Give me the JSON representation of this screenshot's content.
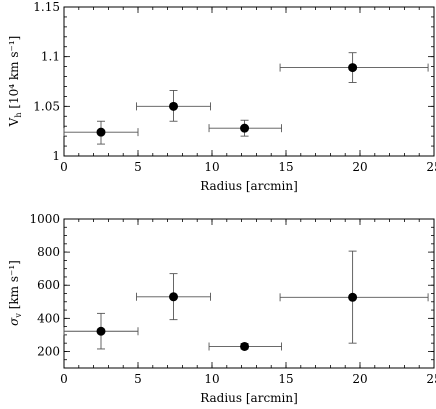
{
  "chart_data": [
    {
      "type": "scatter",
      "xlabel": "Radius [arcmin]",
      "ylabel_main": "V",
      "ylabel_sub": "h",
      "ylabel_unit": " [10⁴ km s⁻¹]",
      "xlim": [
        0,
        25
      ],
      "ylim": [
        1.0,
        1.15
      ],
      "xticks": [
        0,
        5,
        10,
        15,
        20,
        25
      ],
      "xtick_labels": [
        "0",
        "5",
        "10",
        "15",
        "20",
        "25"
      ],
      "yticks": [
        1.0,
        1.05,
        1.1,
        1.15
      ],
      "ytick_labels": [
        "1",
        "1.05",
        "1.1",
        "1.15"
      ],
      "minor_x_step": 1,
      "minor_y_step": 0.01,
      "grid": false,
      "points": [
        {
          "x": 2.5,
          "y": 1.024,
          "xlo": 0.0,
          "xhi": 5.0,
          "ylo": 1.012,
          "yhi": 1.035
        },
        {
          "x": 7.4,
          "y": 1.05,
          "xlo": 4.9,
          "xhi": 9.9,
          "ylo": 1.035,
          "yhi": 1.066
        },
        {
          "x": 12.2,
          "y": 1.028,
          "xlo": 9.8,
          "xhi": 14.7,
          "ylo": 1.02,
          "yhi": 1.036
        },
        {
          "x": 19.5,
          "y": 1.089,
          "xlo": 14.6,
          "xhi": 24.6,
          "ylo": 1.074,
          "yhi": 1.104
        }
      ]
    },
    {
      "type": "scatter",
      "xlabel": "Radius [arcmin]",
      "ylabel_main": "σ",
      "ylabel_sub": "v",
      "ylabel_unit": " [km s⁻¹]",
      "xlim": [
        0,
        25
      ],
      "ylim": [
        100,
        1000
      ],
      "xticks": [
        0,
        5,
        10,
        15,
        20,
        25
      ],
      "xtick_labels": [
        "0",
        "5",
        "10",
        "15",
        "20",
        "25"
      ],
      "yticks": [
        200,
        400,
        600,
        800,
        1000
      ],
      "ytick_labels": [
        "200",
        "400",
        "600",
        "800",
        "1000"
      ],
      "minor_x_step": 1,
      "minor_y_step": 50,
      "grid": false,
      "points": [
        {
          "x": 2.5,
          "y": 322,
          "xlo": 0.0,
          "xhi": 5.0,
          "ylo": 215,
          "yhi": 430
        },
        {
          "x": 7.4,
          "y": 530,
          "xlo": 4.9,
          "xhi": 9.9,
          "ylo": 392,
          "yhi": 670
        },
        {
          "x": 12.2,
          "y": 230,
          "xlo": 9.8,
          "xhi": 14.7,
          "ylo": 215,
          "yhi": 248
        },
        {
          "x": 19.5,
          "y": 527,
          "xlo": 14.6,
          "xhi": 24.6,
          "ylo": 250,
          "yhi": 806
        }
      ]
    }
  ]
}
